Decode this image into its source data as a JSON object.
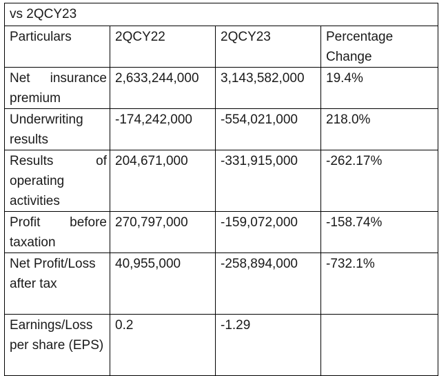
{
  "caption": "vs 2QCY23",
  "header": {
    "particulars": "Particulars",
    "col1": "2QCY22",
    "col2": "2QCY23",
    "change": "Percentage Change"
  },
  "rows": [
    {
      "label": "Net insurance premium",
      "v1": "2,633,244,000",
      "v2": "3,143,582,000",
      "change": "19.4%"
    },
    {
      "label": "Underwriting results",
      "v1": "-174,242,000",
      "v2": "-554,021,000",
      "change": "218.0%"
    },
    {
      "label": "Results of operating activities",
      "v1": "204,671,000",
      "v2": "-331,915,000",
      "change": "-262.17%"
    },
    {
      "label": "Profit before taxation",
      "v1": "270,797,000",
      "v2": "-159,072,000",
      "change": "-158.74%"
    },
    {
      "label": "Net Profit/Loss after tax",
      "v1": "40,955,000",
      "v2": "-258,894,000",
      "change": "-732.1%"
    },
    {
      "label": "Earnings/Loss per share (EPS)",
      "v1": "0.2",
      "v2": "-1.29",
      "change": ""
    }
  ]
}
